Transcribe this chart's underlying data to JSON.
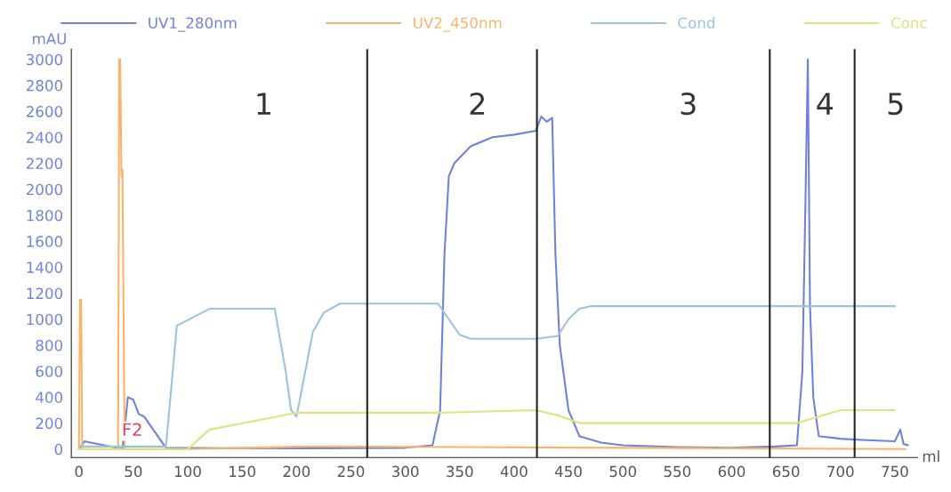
{
  "chart_data": {
    "type": "line",
    "xlabel": "ml",
    "ylabel": "mAU",
    "xlim": [
      -7,
      771
    ],
    "ylim": [
      -65,
      3078
    ],
    "xticks": [
      0,
      50,
      100,
      150,
      200,
      250,
      300,
      350,
      400,
      450,
      500,
      550,
      600,
      650,
      700,
      750
    ],
    "yticks": [
      0,
      200,
      400,
      600,
      800,
      1000,
      1200,
      1400,
      1600,
      1800,
      2000,
      2200,
      2400,
      2600,
      2800,
      3000
    ],
    "grid": false,
    "legend": "top",
    "line_style": "solid",
    "marker": "none",
    "series": [
      {
        "name": "UV1_280nm",
        "color": "#6f82d8",
        "x": [
          0,
          5,
          40,
          45,
          50,
          55,
          60,
          80,
          200,
          300,
          325,
          332,
          336,
          340,
          345,
          360,
          380,
          400,
          420,
          425,
          430,
          435,
          438,
          442,
          450,
          460,
          480,
          500,
          550,
          600,
          640,
          660,
          665,
          668,
          670,
          672,
          675,
          680,
          700,
          720,
          750,
          755,
          758,
          762
        ],
        "values": [
          0,
          60,
          0,
          400,
          380,
          270,
          250,
          10,
          5,
          10,
          30,
          300,
          1500,
          2100,
          2200,
          2330,
          2400,
          2420,
          2450,
          2560,
          2520,
          2550,
          1500,
          800,
          300,
          100,
          50,
          30,
          15,
          10,
          20,
          30,
          600,
          2000,
          3000,
          1100,
          400,
          100,
          80,
          70,
          60,
          150,
          40,
          30
        ]
      },
      {
        "name": "UV2_450nm",
        "color": "#f7b46a",
        "x": [
          0,
          1,
          2,
          3,
          36,
          37,
          38,
          39,
          40,
          42,
          100,
          210,
          230,
          760
        ],
        "values": [
          0,
          1150,
          1150,
          0,
          0,
          3000,
          3000,
          2100,
          2150,
          0,
          0,
          20,
          20,
          0
        ]
      },
      {
        "name": "Cond",
        "color": "#9cc3dc",
        "x": [
          0,
          80,
          90,
          120,
          180,
          190,
          195,
          200,
          215,
          225,
          240,
          330,
          340,
          350,
          360,
          420,
          440,
          450,
          460,
          470,
          640,
          665,
          720,
          750
        ],
        "values": [
          20,
          20,
          950,
          1080,
          1080,
          600,
          300,
          250,
          900,
          1050,
          1120,
          1120,
          1000,
          880,
          850,
          850,
          870,
          1000,
          1080,
          1100,
          1100,
          1100,
          1100,
          1100
        ]
      },
      {
        "name": "Conc",
        "color": "#dfe27e",
        "x": [
          0,
          100,
          120,
          200,
          330,
          420,
          440,
          460,
          500,
          640,
          660,
          700,
          750
        ],
        "values": [
          0,
          0,
          150,
          280,
          280,
          300,
          260,
          200,
          200,
          200,
          200,
          300,
          300
        ]
      }
    ],
    "ref_lines": [
      {
        "axis": "x",
        "value": 265,
        "color": "#222222"
      },
      {
        "axis": "x",
        "value": 421,
        "color": "#222222"
      },
      {
        "axis": "x",
        "value": 635,
        "color": "#222222"
      },
      {
        "axis": "x",
        "value": 713,
        "color": "#222222"
      }
    ],
    "annotations": [
      "1",
      "2",
      "3",
      "4",
      "5",
      "F2"
    ]
  }
}
